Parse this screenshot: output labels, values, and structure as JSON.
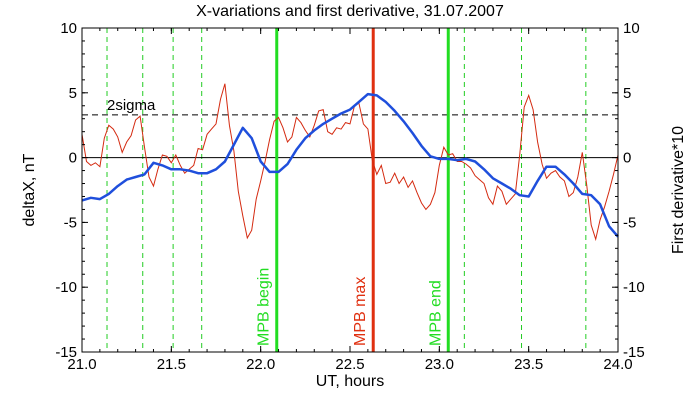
{
  "chart_data": {
    "type": "line",
    "title": "X-variations and first derivative, 31.07.2007",
    "xlabel": "UT, hours",
    "ylabel_left": "deltaX, nT",
    "ylabel_right": "First derivative*10",
    "xlim": [
      21.0,
      24.0
    ],
    "ylim": [
      -15,
      10
    ],
    "x_ticks": [
      21.0,
      21.5,
      22.0,
      22.5,
      23.0,
      23.5,
      24.0
    ],
    "x_tick_labels": [
      "21.0",
      "21.5",
      "22.0",
      "22.5",
      "23.0",
      "23.5",
      "24.0"
    ],
    "y_ticks": [
      -15,
      -10,
      -5,
      0,
      5,
      10
    ],
    "y_tick_labels": [
      "-15",
      "-10",
      "-5",
      "0",
      "5",
      "10"
    ],
    "grid": false,
    "sigma_level": 3.3,
    "sigma_label": "2sigma",
    "zero_level": 0,
    "dashed_verticals": [
      21.14,
      21.34,
      21.51,
      21.67,
      23.14,
      23.46,
      23.82
    ],
    "markers": [
      {
        "x": 22.09,
        "label": "MPB begin",
        "color": "#22dd22"
      },
      {
        "x": 22.63,
        "label": "MPB max",
        "color": "#e03010"
      },
      {
        "x": 23.05,
        "label": "MPB end",
        "color": "#22dd22"
      }
    ],
    "colors": {
      "deltaX": "#1f4fdc",
      "derivative": "#d42a10",
      "dashed_vertical": "#22cc22",
      "axis": "#000000"
    },
    "series": [
      {
        "name": "deltaX, nT",
        "axis": "left",
        "color": "#1f4fdc",
        "x": [
          21.0,
          21.05,
          21.1,
          21.15,
          21.2,
          21.25,
          21.3,
          21.35,
          21.4,
          21.45,
          21.5,
          21.55,
          21.6,
          21.65,
          21.7,
          21.75,
          21.8,
          21.85,
          21.9,
          21.95,
          22.0,
          22.05,
          22.1,
          22.15,
          22.2,
          22.25,
          22.3,
          22.35,
          22.4,
          22.45,
          22.5,
          22.55,
          22.6,
          22.65,
          22.7,
          22.75,
          22.8,
          22.85,
          22.9,
          22.95,
          23.0,
          23.05,
          23.1,
          23.15,
          23.2,
          23.25,
          23.3,
          23.35,
          23.4,
          23.45,
          23.5,
          23.55,
          23.6,
          23.65,
          23.7,
          23.75,
          23.8,
          23.85,
          23.9,
          23.95,
          24.0
        ],
        "values": [
          -3.3,
          -3.1,
          -3.2,
          -2.8,
          -2.2,
          -1.7,
          -1.5,
          -1.3,
          -0.4,
          -0.6,
          -0.9,
          -0.9,
          -1.0,
          -1.2,
          -1.2,
          -0.9,
          -0.3,
          1.0,
          2.3,
          1.5,
          -0.3,
          -1.1,
          -1.1,
          -0.5,
          0.6,
          1.5,
          2.1,
          2.6,
          3.0,
          3.4,
          3.7,
          4.3,
          4.9,
          4.8,
          4.3,
          3.6,
          2.8,
          1.9,
          0.9,
          0.1,
          -0.1,
          -0.1,
          -0.2,
          -0.1,
          -0.3,
          -0.9,
          -1.6,
          -2.0,
          -2.4,
          -2.9,
          -3.0,
          -1.8,
          -0.7,
          -0.7,
          -1.3,
          -2.0,
          -2.8,
          -2.9,
          -3.6,
          -5.3,
          -6.1
        ]
      },
      {
        "name": "First derivative*10",
        "axis": "right",
        "color": "#d42a10",
        "x": [
          21.0,
          21.025,
          21.05,
          21.075,
          21.1,
          21.125,
          21.15,
          21.175,
          21.2,
          21.225,
          21.25,
          21.275,
          21.3,
          21.325,
          21.35,
          21.375,
          21.4,
          21.425,
          21.45,
          21.475,
          21.5,
          21.525,
          21.55,
          21.575,
          21.6,
          21.625,
          21.65,
          21.675,
          21.7,
          21.725,
          21.75,
          21.775,
          21.8,
          21.825,
          21.85,
          21.875,
          21.9,
          21.925,
          21.95,
          21.975,
          22.0,
          22.025,
          22.05,
          22.075,
          22.1,
          22.125,
          22.15,
          22.175,
          22.2,
          22.225,
          22.25,
          22.275,
          22.3,
          22.325,
          22.35,
          22.375,
          22.4,
          22.425,
          22.45,
          22.475,
          22.5,
          22.525,
          22.55,
          22.575,
          22.6,
          22.625,
          22.65,
          22.675,
          22.7,
          22.725,
          22.75,
          22.775,
          22.8,
          22.825,
          22.85,
          22.875,
          22.9,
          22.925,
          22.95,
          22.975,
          23.0,
          23.025,
          23.05,
          23.075,
          23.1,
          23.125,
          23.15,
          23.175,
          23.2,
          23.225,
          23.25,
          23.275,
          23.3,
          23.325,
          23.35,
          23.375,
          23.4,
          23.425,
          23.45,
          23.475,
          23.5,
          23.525,
          23.55,
          23.575,
          23.6,
          23.625,
          23.65,
          23.675,
          23.7,
          23.725,
          23.75,
          23.775,
          23.8,
          23.825,
          23.85,
          23.875,
          23.9,
          23.925,
          23.95,
          23.975,
          24.0
        ],
        "values": [
          1.8,
          -0.3,
          -0.6,
          -0.4,
          -0.7,
          1.5,
          2.5,
          2.2,
          1.6,
          0.4,
          1.2,
          1.7,
          2.9,
          3.2,
          0.8,
          -1.5,
          -2.2,
          -0.9,
          0.2,
          0.1,
          -0.4,
          0.2,
          -0.6,
          -1.2,
          -0.9,
          -0.6,
          0.7,
          0.6,
          1.8,
          2.2,
          2.6,
          4.5,
          5.7,
          2.5,
          0.5,
          -2.6,
          -4.5,
          -6.2,
          -5.6,
          -3.2,
          -1.8,
          -0.3,
          1.4,
          2.8,
          3.1,
          2.3,
          1.2,
          1.6,
          3.1,
          2.7,
          2.1,
          1.6,
          2.5,
          3.6,
          3.7,
          2.0,
          1.8,
          2.3,
          2.2,
          2.7,
          2.6,
          4.0,
          4.2,
          2.6,
          2.2,
          -0.2,
          -1.3,
          -0.6,
          -2.0,
          -1.9,
          -1.2,
          -2.0,
          -1.5,
          -2.3,
          -1.8,
          -2.7,
          -3.5,
          -4.0,
          -3.6,
          -2.7,
          -0.6,
          0.8,
          0.2,
          0.3,
          -0.3,
          -0.3,
          -0.5,
          -0.8,
          -1.4,
          -1.7,
          -2.0,
          -3.1,
          -3.6,
          -2.2,
          -2.6,
          -3.6,
          -3.2,
          -2.8,
          0.2,
          3.9,
          4.8,
          3.7,
          1.2,
          -0.5,
          -1.6,
          -1.2,
          -1.0,
          -1.5,
          -1.8,
          -3.0,
          -2.7,
          -1.5,
          0.4,
          -2.1,
          -5.2,
          -6.3,
          -4.8,
          -3.8,
          -2.6,
          -1.3,
          0.2
        ]
      }
    ]
  }
}
